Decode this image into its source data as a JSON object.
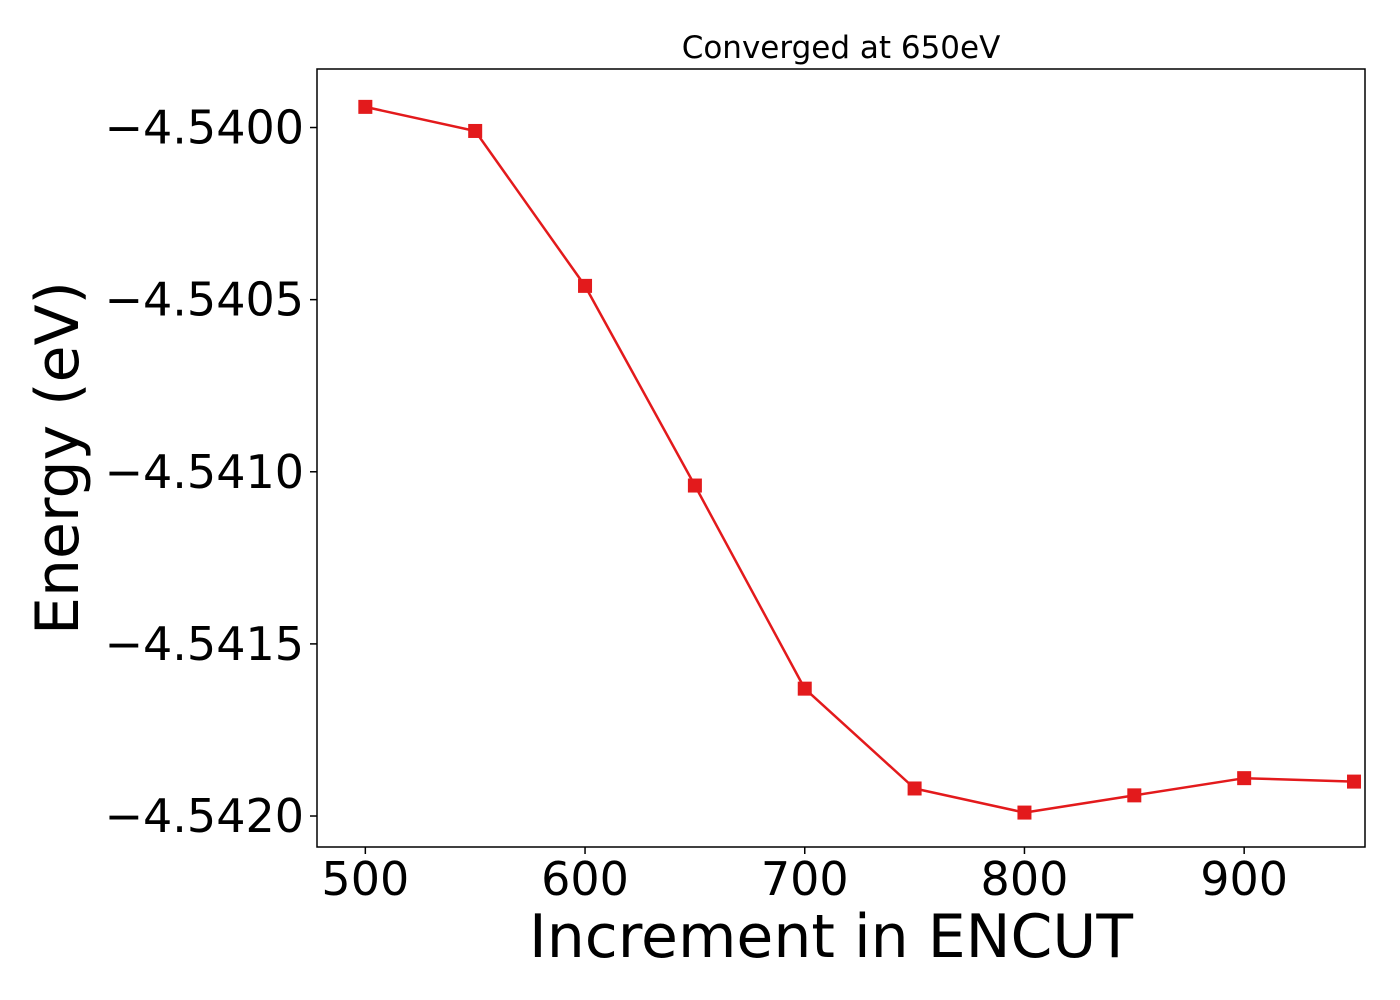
{
  "chart_data": {
    "type": "line",
    "title": "Converged at 650eV",
    "xlabel": "Increment in ENCUT",
    "ylabel": "Energy (eV)",
    "x": [
      500,
      550,
      600,
      650,
      700,
      750,
      800,
      850,
      900,
      950
    ],
    "series": [
      {
        "values": [
          -4.53994,
          -4.54001,
          -4.54046,
          -4.54104,
          -4.54163,
          -4.54192,
          -4.54199,
          -4.54194,
          -4.54189,
          -4.5419
        ],
        "color": "#e31a1c",
        "marker": "square"
      }
    ],
    "xlim": [
      478,
      955
    ],
    "ylim": [
      -4.54209,
      -4.53983
    ],
    "xticks": [
      500,
      600,
      700,
      800,
      900
    ],
    "xtick_labels": [
      "500",
      "600",
      "700",
      "800",
      "900"
    ],
    "yticks": [
      -4.54,
      -4.5405,
      -4.541,
      -4.5415,
      -4.542
    ],
    "ytick_labels": [
      "−4.5400",
      "−4.5405",
      "−4.5410",
      "−4.5415",
      "−4.5420"
    ],
    "grid": false,
    "legend": "none"
  }
}
